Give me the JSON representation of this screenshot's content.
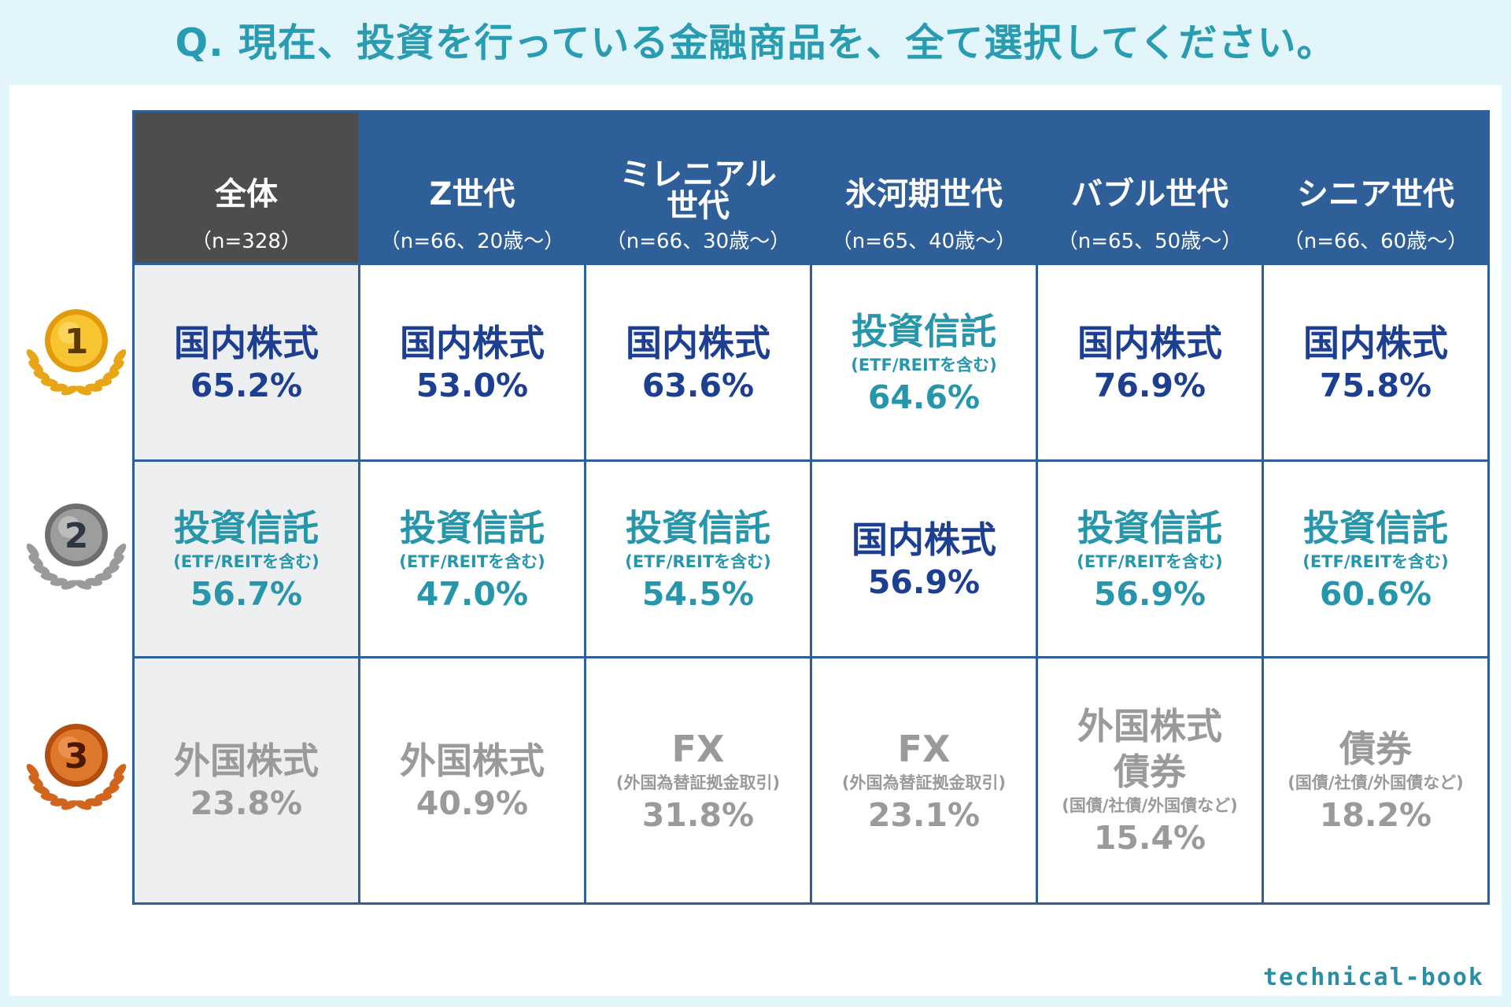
{
  "question": "Q. 現在、投資を行っている金融商品を、全て選択してください。",
  "brand": "technical-book",
  "chart_data": {
    "type": "table",
    "columns": [
      {
        "name": "全体",
        "sample": "（n=328）"
      },
      {
        "name": "Z世代",
        "sample": "（n=66、20歳～）"
      },
      {
        "name": "ミレニアル世代",
        "name_lines": [
          "ミレニアル",
          "世代"
        ],
        "sample": "（n=66、30歳～）"
      },
      {
        "name": "氷河期世代",
        "sample": "（n=65、40歳～）"
      },
      {
        "name": "バブル世代",
        "sample": "（n=65、50歳～）"
      },
      {
        "name": "シニア世代",
        "sample": "（n=66、60歳～）"
      }
    ],
    "ranks": [
      {
        "rank": "1",
        "cells": [
          {
            "item": "国内株式",
            "percent": "65.2%",
            "value": 65.2
          },
          {
            "item": "国内株式",
            "percent": "53.0%",
            "value": 53.0
          },
          {
            "item": "国内株式",
            "percent": "63.6%",
            "value": 63.6
          },
          {
            "item": "投資信託",
            "note": "(ETF/REITを含む)",
            "percent": "64.6%",
            "value": 64.6
          },
          {
            "item": "国内株式",
            "percent": "76.9%",
            "value": 76.9
          },
          {
            "item": "国内株式",
            "percent": "75.8%",
            "value": 75.8
          }
        ]
      },
      {
        "rank": "2",
        "cells": [
          {
            "item": "投資信託",
            "note": "(ETF/REITを含む)",
            "percent": "56.7%",
            "value": 56.7
          },
          {
            "item": "投資信託",
            "note": "(ETF/REITを含む)",
            "percent": "47.0%",
            "value": 47.0
          },
          {
            "item": "投資信託",
            "note": "(ETF/REITを含む)",
            "percent": "54.5%",
            "value": 54.5
          },
          {
            "item": "国内株式",
            "percent": "56.9%",
            "value": 56.9
          },
          {
            "item": "投資信託",
            "note": "(ETF/REITを含む)",
            "percent": "56.9%",
            "value": 56.9
          },
          {
            "item": "投資信託",
            "note": "(ETF/REITを含む)",
            "percent": "60.6%",
            "value": 60.6
          }
        ]
      },
      {
        "rank": "3",
        "cells": [
          {
            "item": "外国株式",
            "percent": "23.8%",
            "value": 23.8
          },
          {
            "item": "外国株式",
            "percent": "40.9%",
            "value": 40.9
          },
          {
            "item": "FX",
            "note": "(外国為替証拠金取引)",
            "percent": "31.8%",
            "value": 31.8
          },
          {
            "item": "FX",
            "note": "(外国為替証拠金取引)",
            "percent": "23.1%",
            "value": 23.1
          },
          {
            "item": "外国株式",
            "item2": "債券",
            "note": "(国債/社債/外国債など)",
            "percent": "15.4%",
            "value": 15.4
          },
          {
            "item": "債券",
            "note": "(国債/社債/外国債など)",
            "percent": "18.2%",
            "value": 18.2
          }
        ]
      }
    ]
  },
  "colors": {
    "header_blue": "#2f5f99",
    "header_all": "#4d4d4d",
    "all_column_bg": "#eceef0",
    "domestic_stock": "#1d3f91",
    "investment_trust": "#2796ab",
    "rank3_text": "#9a9a9a",
    "gold": "#f2b21c",
    "silver": "#8f8f8f",
    "bronze": "#d2661c"
  }
}
